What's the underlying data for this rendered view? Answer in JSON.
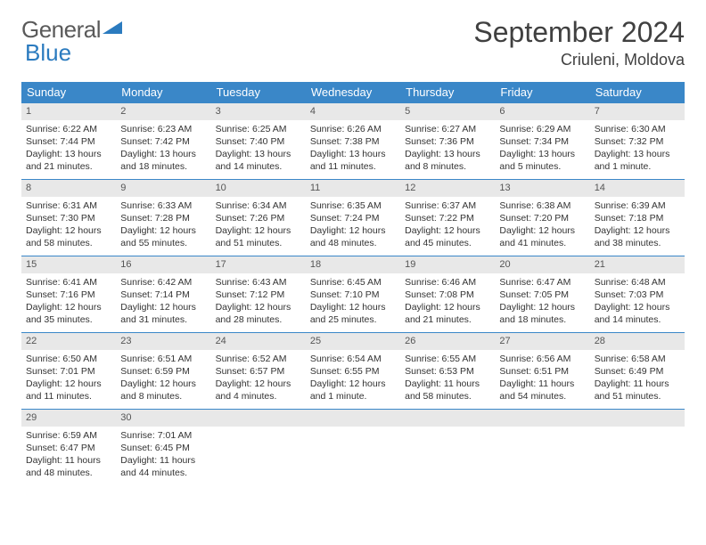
{
  "logo": {
    "text1": "General",
    "text2": "Blue"
  },
  "title": "September 2024",
  "location": "Criuleni, Moldova",
  "weekdays": [
    "Sunday",
    "Monday",
    "Tuesday",
    "Wednesday",
    "Thursday",
    "Friday",
    "Saturday"
  ],
  "header_bg": "#3a87c8",
  "daybar_bg": "#e8e8e8",
  "days": [
    {
      "n": "1",
      "sr": "6:22 AM",
      "ss": "7:44 PM",
      "dl": "13 hours and 21 minutes."
    },
    {
      "n": "2",
      "sr": "6:23 AM",
      "ss": "7:42 PM",
      "dl": "13 hours and 18 minutes."
    },
    {
      "n": "3",
      "sr": "6:25 AM",
      "ss": "7:40 PM",
      "dl": "13 hours and 14 minutes."
    },
    {
      "n": "4",
      "sr": "6:26 AM",
      "ss": "7:38 PM",
      "dl": "13 hours and 11 minutes."
    },
    {
      "n": "5",
      "sr": "6:27 AM",
      "ss": "7:36 PM",
      "dl": "13 hours and 8 minutes."
    },
    {
      "n": "6",
      "sr": "6:29 AM",
      "ss": "7:34 PM",
      "dl": "13 hours and 5 minutes."
    },
    {
      "n": "7",
      "sr": "6:30 AM",
      "ss": "7:32 PM",
      "dl": "13 hours and 1 minute."
    },
    {
      "n": "8",
      "sr": "6:31 AM",
      "ss": "7:30 PM",
      "dl": "12 hours and 58 minutes."
    },
    {
      "n": "9",
      "sr": "6:33 AM",
      "ss": "7:28 PM",
      "dl": "12 hours and 55 minutes."
    },
    {
      "n": "10",
      "sr": "6:34 AM",
      "ss": "7:26 PM",
      "dl": "12 hours and 51 minutes."
    },
    {
      "n": "11",
      "sr": "6:35 AM",
      "ss": "7:24 PM",
      "dl": "12 hours and 48 minutes."
    },
    {
      "n": "12",
      "sr": "6:37 AM",
      "ss": "7:22 PM",
      "dl": "12 hours and 45 minutes."
    },
    {
      "n": "13",
      "sr": "6:38 AM",
      "ss": "7:20 PM",
      "dl": "12 hours and 41 minutes."
    },
    {
      "n": "14",
      "sr": "6:39 AM",
      "ss": "7:18 PM",
      "dl": "12 hours and 38 minutes."
    },
    {
      "n": "15",
      "sr": "6:41 AM",
      "ss": "7:16 PM",
      "dl": "12 hours and 35 minutes."
    },
    {
      "n": "16",
      "sr": "6:42 AM",
      "ss": "7:14 PM",
      "dl": "12 hours and 31 minutes."
    },
    {
      "n": "17",
      "sr": "6:43 AM",
      "ss": "7:12 PM",
      "dl": "12 hours and 28 minutes."
    },
    {
      "n": "18",
      "sr": "6:45 AM",
      "ss": "7:10 PM",
      "dl": "12 hours and 25 minutes."
    },
    {
      "n": "19",
      "sr": "6:46 AM",
      "ss": "7:08 PM",
      "dl": "12 hours and 21 minutes."
    },
    {
      "n": "20",
      "sr": "6:47 AM",
      "ss": "7:05 PM",
      "dl": "12 hours and 18 minutes."
    },
    {
      "n": "21",
      "sr": "6:48 AM",
      "ss": "7:03 PM",
      "dl": "12 hours and 14 minutes."
    },
    {
      "n": "22",
      "sr": "6:50 AM",
      "ss": "7:01 PM",
      "dl": "12 hours and 11 minutes."
    },
    {
      "n": "23",
      "sr": "6:51 AM",
      "ss": "6:59 PM",
      "dl": "12 hours and 8 minutes."
    },
    {
      "n": "24",
      "sr": "6:52 AM",
      "ss": "6:57 PM",
      "dl": "12 hours and 4 minutes."
    },
    {
      "n": "25",
      "sr": "6:54 AM",
      "ss": "6:55 PM",
      "dl": "12 hours and 1 minute."
    },
    {
      "n": "26",
      "sr": "6:55 AM",
      "ss": "6:53 PM",
      "dl": "11 hours and 58 minutes."
    },
    {
      "n": "27",
      "sr": "6:56 AM",
      "ss": "6:51 PM",
      "dl": "11 hours and 54 minutes."
    },
    {
      "n": "28",
      "sr": "6:58 AM",
      "ss": "6:49 PM",
      "dl": "11 hours and 51 minutes."
    },
    {
      "n": "29",
      "sr": "6:59 AM",
      "ss": "6:47 PM",
      "dl": "11 hours and 48 minutes."
    },
    {
      "n": "30",
      "sr": "7:01 AM",
      "ss": "6:45 PM",
      "dl": "11 hours and 44 minutes."
    }
  ],
  "labels": {
    "sunrise": "Sunrise: ",
    "sunset": "Sunset: ",
    "daylight": "Daylight: "
  }
}
